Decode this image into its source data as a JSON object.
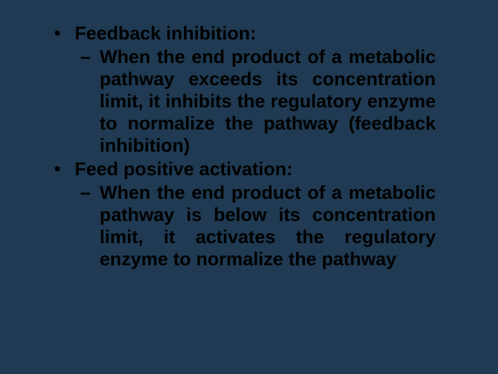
{
  "slide": {
    "background_color": "#1f3a52",
    "text_color": "#000000",
    "font_family": "Arial",
    "font_size_pt": 20,
    "font_weight": "bold",
    "bullets": [
      {
        "title": "Feedback inhibition:",
        "sub": "When the end product of a metabolic pathway exceeds its concentration limit, it inhibits the regulatory enzyme to normalize the pathway (feedback inhibition)"
      },
      {
        "title": "Feed positive activation:",
        "sub": "When the end product of a metabolic pathway is below its concentration limit, it activates the regulatory enzyme to normalize the pathway"
      }
    ]
  }
}
